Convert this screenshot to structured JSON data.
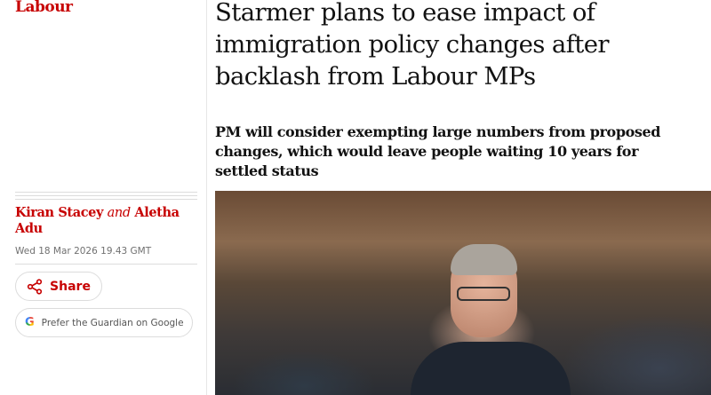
{
  "section": "Labour",
  "headline": "Starmer plans to ease impact of immigration policy changes after backlash from Labour MPs",
  "standfirst": "PM will consider exempting large numbers from proposed changes, which would leave people waiting 10 years for settled status",
  "byline": {
    "author1": "Kiran Stacey",
    "joiner": "and",
    "author2": "Aletha Adu"
  },
  "date": "Wed 18 Mar 2026 19.43 GMT",
  "share_label": "Share",
  "google_label": "Prefer the Guardian on Google",
  "icons": {
    "share": "share-icon",
    "google": "google-g-icon"
  },
  "colors": {
    "accent": "#c70000",
    "text": "#121212"
  }
}
